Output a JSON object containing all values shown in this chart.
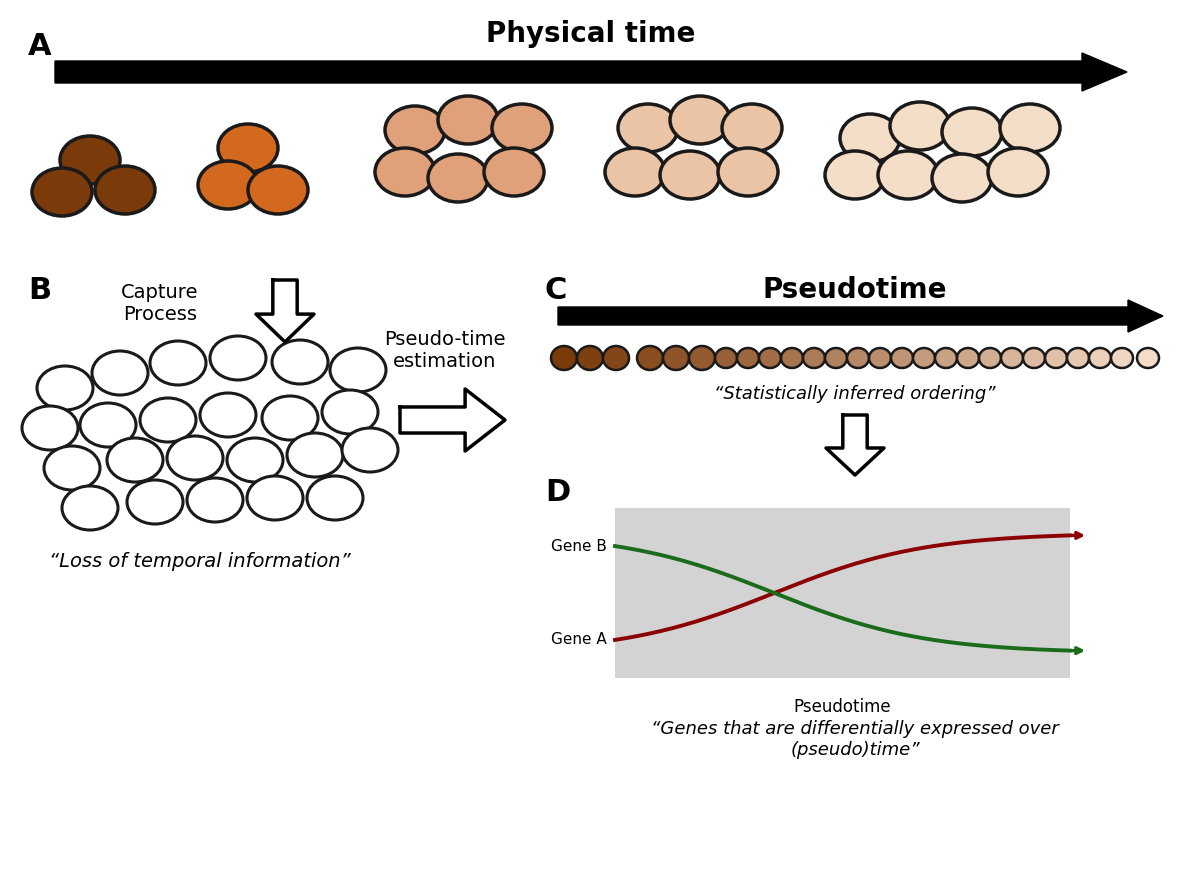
{
  "title_A": "Physical time",
  "title_C": "Pseudotime",
  "label_A": "A",
  "label_B": "B",
  "label_C": "C",
  "label_D": "D",
  "capture_label": "Capture\nProcess",
  "pseudo_time_label": "Pseudo-time\nestimation",
  "loss_info_label": "“Loss of temporal information”",
  "stat_inferred_label": "“Statistically inferred ordering”",
  "genes_label": "“Genes that are differentially expressed over\n(pseudo)time”",
  "pseudotime_xlabel": "Pseudotime",
  "gene_A_label": "Gene A",
  "gene_B_label": "Gene B",
  "bg_color": "#ffffff",
  "cell_outline": "#1a1a1a",
  "gene_A_color": "#8B0000",
  "gene_B_color": "#1a6b1a",
  "plot_bg": "#d3d3d3"
}
